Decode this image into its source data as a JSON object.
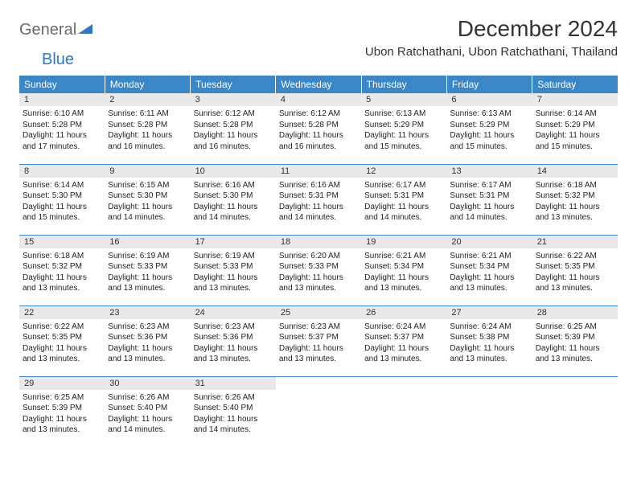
{
  "logo": {
    "text1": "General",
    "text2": "Blue",
    "text1_color": "#6a6a6a",
    "text2_color": "#2f78bf"
  },
  "title": "December 2024",
  "location": "Ubon Ratchathani, Ubon Ratchathani, Thailand",
  "weekday_header_bg": "#3b86c6",
  "weekday_header_fg": "#ffffff",
  "daynum_bg": "#e9e9e9",
  "cell_border_color": "#3b86c6",
  "weekdays": [
    "Sunday",
    "Monday",
    "Tuesday",
    "Wednesday",
    "Thursday",
    "Friday",
    "Saturday"
  ],
  "days": [
    {
      "n": "1",
      "sr": "6:10 AM",
      "ss": "5:28 PM",
      "dh": "11",
      "dm": "17"
    },
    {
      "n": "2",
      "sr": "6:11 AM",
      "ss": "5:28 PM",
      "dh": "11",
      "dm": "16"
    },
    {
      "n": "3",
      "sr": "6:12 AM",
      "ss": "5:28 PM",
      "dh": "11",
      "dm": "16"
    },
    {
      "n": "4",
      "sr": "6:12 AM",
      "ss": "5:28 PM",
      "dh": "11",
      "dm": "16"
    },
    {
      "n": "5",
      "sr": "6:13 AM",
      "ss": "5:29 PM",
      "dh": "11",
      "dm": "15"
    },
    {
      "n": "6",
      "sr": "6:13 AM",
      "ss": "5:29 PM",
      "dh": "11",
      "dm": "15"
    },
    {
      "n": "7",
      "sr": "6:14 AM",
      "ss": "5:29 PM",
      "dh": "11",
      "dm": "15"
    },
    {
      "n": "8",
      "sr": "6:14 AM",
      "ss": "5:30 PM",
      "dh": "11",
      "dm": "15"
    },
    {
      "n": "9",
      "sr": "6:15 AM",
      "ss": "5:30 PM",
      "dh": "11",
      "dm": "14"
    },
    {
      "n": "10",
      "sr": "6:16 AM",
      "ss": "5:30 PM",
      "dh": "11",
      "dm": "14"
    },
    {
      "n": "11",
      "sr": "6:16 AM",
      "ss": "5:31 PM",
      "dh": "11",
      "dm": "14"
    },
    {
      "n": "12",
      "sr": "6:17 AM",
      "ss": "5:31 PM",
      "dh": "11",
      "dm": "14"
    },
    {
      "n": "13",
      "sr": "6:17 AM",
      "ss": "5:31 PM",
      "dh": "11",
      "dm": "14"
    },
    {
      "n": "14",
      "sr": "6:18 AM",
      "ss": "5:32 PM",
      "dh": "11",
      "dm": "13"
    },
    {
      "n": "15",
      "sr": "6:18 AM",
      "ss": "5:32 PM",
      "dh": "11",
      "dm": "13"
    },
    {
      "n": "16",
      "sr": "6:19 AM",
      "ss": "5:33 PM",
      "dh": "11",
      "dm": "13"
    },
    {
      "n": "17",
      "sr": "6:19 AM",
      "ss": "5:33 PM",
      "dh": "11",
      "dm": "13"
    },
    {
      "n": "18",
      "sr": "6:20 AM",
      "ss": "5:33 PM",
      "dh": "11",
      "dm": "13"
    },
    {
      "n": "19",
      "sr": "6:21 AM",
      "ss": "5:34 PM",
      "dh": "11",
      "dm": "13"
    },
    {
      "n": "20",
      "sr": "6:21 AM",
      "ss": "5:34 PM",
      "dh": "11",
      "dm": "13"
    },
    {
      "n": "21",
      "sr": "6:22 AM",
      "ss": "5:35 PM",
      "dh": "11",
      "dm": "13"
    },
    {
      "n": "22",
      "sr": "6:22 AM",
      "ss": "5:35 PM",
      "dh": "11",
      "dm": "13"
    },
    {
      "n": "23",
      "sr": "6:23 AM",
      "ss": "5:36 PM",
      "dh": "11",
      "dm": "13"
    },
    {
      "n": "24",
      "sr": "6:23 AM",
      "ss": "5:36 PM",
      "dh": "11",
      "dm": "13"
    },
    {
      "n": "25",
      "sr": "6:23 AM",
      "ss": "5:37 PM",
      "dh": "11",
      "dm": "13"
    },
    {
      "n": "26",
      "sr": "6:24 AM",
      "ss": "5:37 PM",
      "dh": "11",
      "dm": "13"
    },
    {
      "n": "27",
      "sr": "6:24 AM",
      "ss": "5:38 PM",
      "dh": "11",
      "dm": "13"
    },
    {
      "n": "28",
      "sr": "6:25 AM",
      "ss": "5:39 PM",
      "dh": "11",
      "dm": "13"
    },
    {
      "n": "29",
      "sr": "6:25 AM",
      "ss": "5:39 PM",
      "dh": "11",
      "dm": "13"
    },
    {
      "n": "30",
      "sr": "6:26 AM",
      "ss": "5:40 PM",
      "dh": "11",
      "dm": "14"
    },
    {
      "n": "31",
      "sr": "6:26 AM",
      "ss": "5:40 PM",
      "dh": "11",
      "dm": "14"
    }
  ],
  "labels": {
    "sunrise": "Sunrise:",
    "sunset": "Sunset:",
    "daylight": "Daylight:",
    "hours": "hours",
    "and": "and",
    "minutes": "minutes."
  },
  "grid": {
    "start_offset": 0,
    "cols": 7,
    "rows": 5
  },
  "typography": {
    "title_size": 28,
    "location_size": 15,
    "weekday_size": 12,
    "daynum_size": 11,
    "body_size": 10
  }
}
